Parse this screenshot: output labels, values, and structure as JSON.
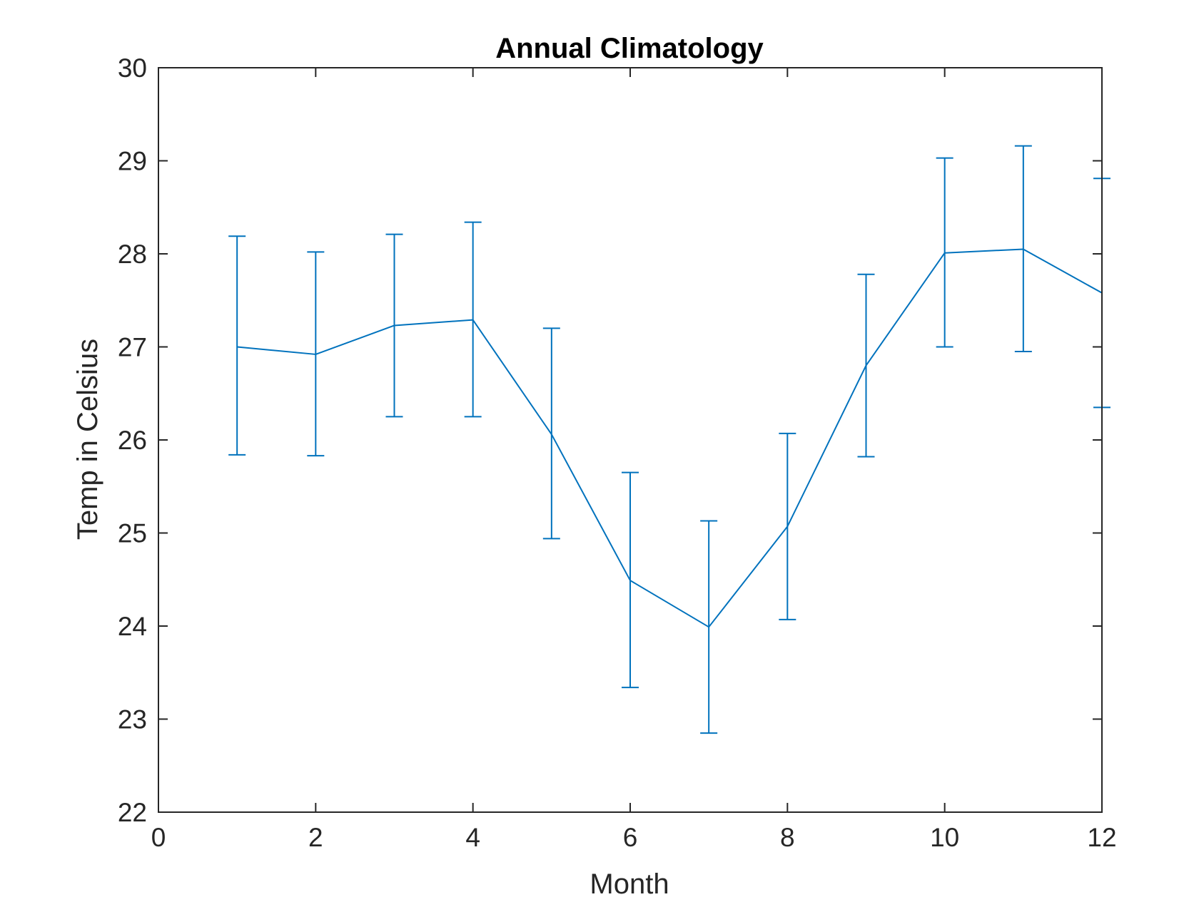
{
  "chart_data": {
    "type": "line",
    "title": "Annual Climatology",
    "xlabel": "Month",
    "ylabel": "Temp in Celsius",
    "xlim": [
      0,
      12
    ],
    "ylim": [
      22,
      30
    ],
    "x_ticks": [
      "0",
      "2",
      "4",
      "6",
      "8",
      "10",
      "12"
    ],
    "y_ticks": [
      "22",
      "23",
      "24",
      "25",
      "26",
      "27",
      "28",
      "29",
      "30"
    ],
    "grid": false,
    "legend": "none",
    "series_color": "#0072bd",
    "series": [
      {
        "x": [
          1,
          2,
          3,
          4,
          5,
          6,
          7,
          8,
          9,
          10,
          11,
          12
        ],
        "values": [
          27.0,
          26.92,
          27.23,
          27.29,
          26.06,
          24.49,
          23.99,
          25.07,
          26.8,
          28.01,
          28.05,
          27.58
        ],
        "error_lower": [
          25.84,
          25.83,
          26.25,
          26.25,
          24.94,
          23.34,
          22.85,
          24.07,
          25.82,
          27.0,
          26.95,
          26.35
        ],
        "error_upper": [
          28.19,
          28.02,
          28.21,
          28.34,
          27.2,
          25.65,
          25.13,
          26.07,
          27.78,
          29.03,
          29.16,
          28.81
        ]
      }
    ]
  }
}
